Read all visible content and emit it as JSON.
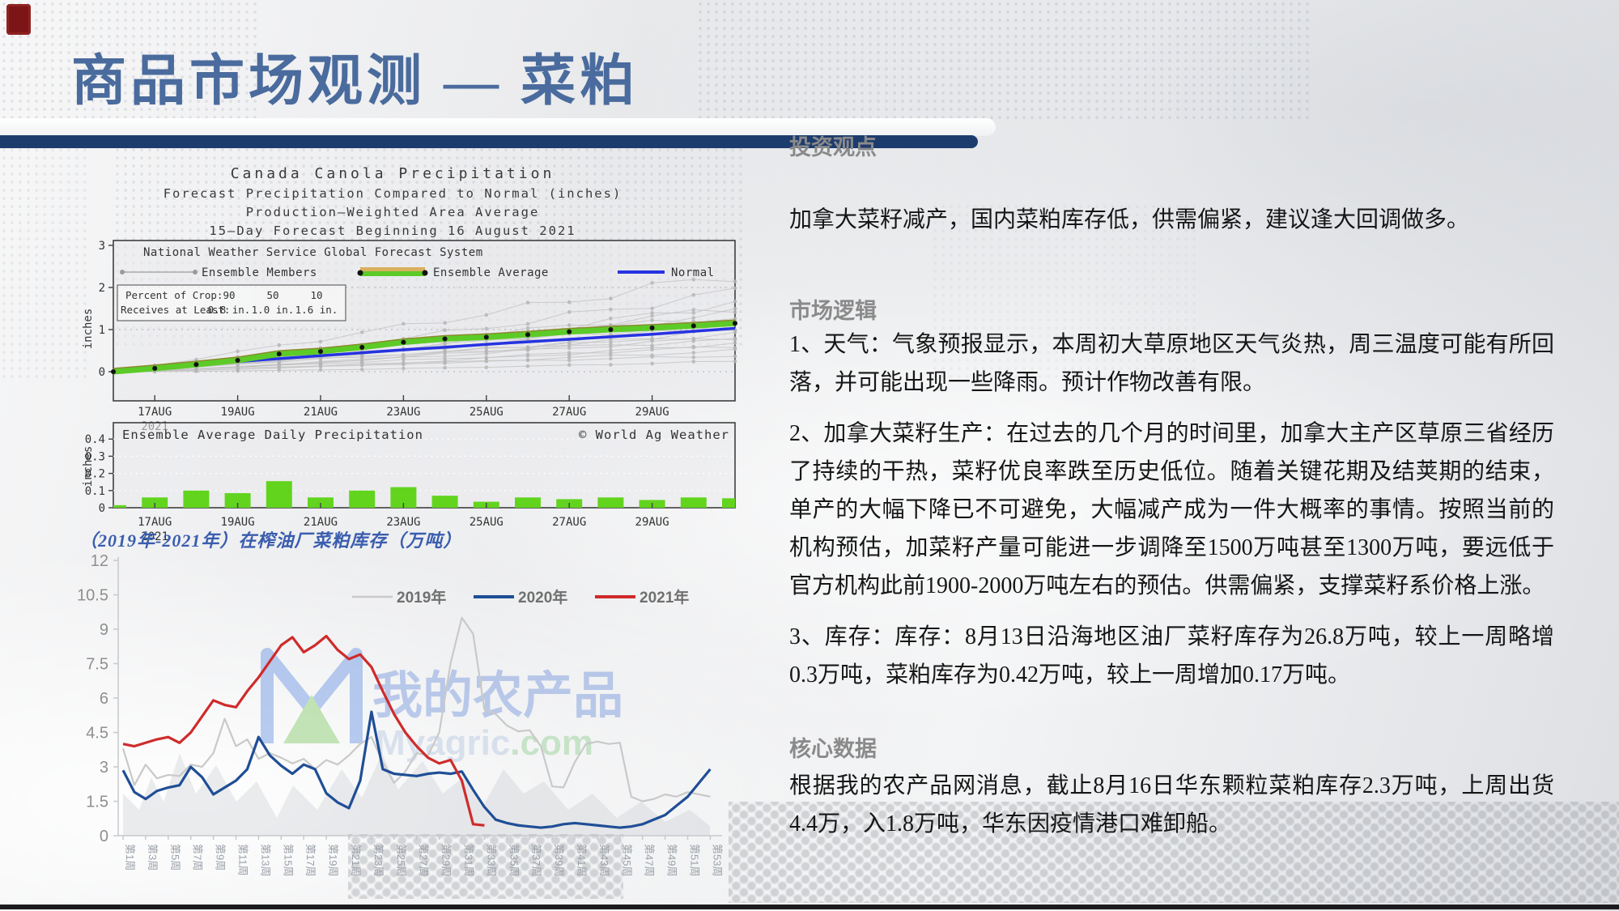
{
  "page": {
    "title": "商品市场观测 — 菜粕"
  },
  "sections": {
    "viewpoint": {
      "header": "投资观点",
      "body": "加拿大菜籽减产，国内菜粕库存低，供需偏紧，建议逢大回调做多。"
    },
    "logic": {
      "header": "市场逻辑",
      "items": [
        "1、天气：气象预报显示，本周初大草原地区天气炎热，周三温度可能有所回落，并可能出现一些降雨。预计作物改善有限。",
        "2、加拿大菜籽生产：在过去的几个月的时间里，加拿大主产区草原三省经历了持续的干热，菜籽优良率跌至历史低位。随着关键花期及结荚期的结束，单产的大幅下降已不可避免，大幅减产成为一件大概率的事情。按照当前的机构预估，加菜籽产量可能进一步调降至1500万吨甚至1300万吨，要远低于官方机构此前1900-2000万吨左右的预估。供需偏紧，支撑菜籽系价格上涨。",
        "3、库存：库存：8月13日沿海地区油厂菜籽库存为26.8万吨，较上一周略增0.3万吨，菜粕库存为0.42万吨，较上一周增加0.17万吨。"
      ]
    },
    "core": {
      "header": "核心数据",
      "body": "根据我的农产品网消息，截止8月16日华东颗粒菜粕库存2.3万吨，上周出货4.4万，入1.8万吨，华东因疫情港口难卸船。"
    }
  },
  "colors": {
    "accent_navy": "#1d3c6e",
    "title_blue": "#4a6b9d",
    "red_2021": "#cf2b2b",
    "blue_2020": "#1f4e96",
    "gray_2019": "#c9c9c9",
    "green_bar": "#62d41e",
    "normal_blue": "#2633e0"
  },
  "chart_data": [
    {
      "id": "canada-canola-precipitation-forecast",
      "type": "line",
      "title": "Canada Canola Precipitation",
      "subtitles": [
        "Forecast Precipitation Compared to Normal (inches)",
        "Production—Weighted Area Average",
        "15—Day Forecast Beginning 16 August 2021"
      ],
      "legend_title": "National Weather Service Global Forecast System",
      "ylabel": "inches",
      "ylim": [
        0,
        3
      ],
      "y_ticks": [
        0,
        1,
        2,
        3
      ],
      "x_tick_labels": [
        "17AUG",
        "19AUG",
        "21AUG",
        "23AUG",
        "25AUG",
        "27AUG",
        "29AUG"
      ],
      "x_year_label": "2021",
      "crop_table": {
        "row1_label": "Percent of Crop:",
        "row2_label": "Receives at Least:",
        "percents": [
          "90",
          "50",
          "10"
        ],
        "amounts": [
          "0.8 in.",
          "1.0 in.",
          "1.6 in."
        ]
      },
      "series": [
        {
          "name": "Ensemble Members",
          "color": "#bfbfbf",
          "finals": [
            0.25,
            0.38,
            0.5,
            0.6,
            0.68,
            0.75,
            0.82,
            0.9,
            0.98,
            1.05,
            1.12,
            1.2,
            1.3,
            1.4,
            1.5,
            1.65,
            1.9,
            2.3
          ],
          "powers": [
            1.6,
            0.9,
            1.3,
            1.05,
            1.5,
            0.8,
            1.2,
            1.0,
            1.35,
            0.95,
            1.45,
            1.1,
            0.85,
            1.25,
            1.05,
            1.4,
            1.15,
            1.0
          ]
        },
        {
          "name": "Ensemble Average",
          "color": "#5ccb27",
          "values": [
            0,
            0.08,
            0.17,
            0.27,
            0.42,
            0.48,
            0.58,
            0.7,
            0.78,
            0.82,
            0.88,
            0.95,
            1.0,
            1.04,
            1.09,
            1.15
          ]
        },
        {
          "name": "Normal",
          "color": "#2633e0",
          "values": [
            0.03,
            0.1,
            0.17,
            0.24,
            0.31,
            0.38,
            0.45,
            0.52,
            0.58,
            0.65,
            0.71,
            0.77,
            0.83,
            0.89,
            0.96,
            1.03
          ]
        }
      ]
    },
    {
      "id": "ensemble-average-daily-precipitation",
      "type": "bar",
      "title": "Ensemble Average Daily Precipitation",
      "credit": "© World Ag Weather",
      "ylabel": "inches",
      "ylim": [
        0,
        0.45
      ],
      "y_ticks": [
        0,
        0.1,
        0.2,
        0.3,
        0.4
      ],
      "x_tick_labels": [
        "17AUG",
        "19AUG",
        "21AUG",
        "23AUG",
        "25AUG",
        "27AUG",
        "29AUG"
      ],
      "x_year_label": "2021",
      "bar_color": "#62d41e",
      "values": [
        0.015,
        0.06,
        0.1,
        0.085,
        0.155,
        0.06,
        0.1,
        0.12,
        0.07,
        0.035,
        0.06,
        0.05,
        0.06,
        0.045,
        0.06,
        0.055
      ]
    },
    {
      "id": "rapeseed-meal-inventory-at-oil-mills",
      "type": "line",
      "title": "（2019年-2021年）在榨油厂菜粕库存（万吨）",
      "ylabel": "万吨",
      "ylim": [
        0,
        12
      ],
      "y_ticks": [
        0,
        1.5,
        3,
        4.5,
        6,
        7.5,
        9,
        10.5,
        12
      ],
      "x_range": [
        1,
        53
      ],
      "x_tick_labels": [
        "第1周",
        "第3周",
        "第5周",
        "第7周",
        "第9周",
        "第11周",
        "第13周",
        "第15周",
        "第17周",
        "第19周",
        "第21周",
        "第23周",
        "第25周",
        "第27周",
        "第29周",
        "第31周",
        "第33周",
        "第35周",
        "第37周",
        "第39周",
        "第41周",
        "第43周",
        "第45周",
        "第47周",
        "第49周",
        "第51周",
        "第53周"
      ],
      "watermark": {
        "cn": "我的农产品",
        "en_main": "Myagric",
        "en_suffix": ".com"
      },
      "series": [
        {
          "name": "2019年",
          "color": "#c9c9c9",
          "values": [
            3.8,
            2.2,
            3.1,
            2.5,
            2.65,
            2.6,
            3.1,
            3.0,
            3.6,
            5.1,
            3.9,
            4.2,
            3.35,
            3.6,
            3.4,
            3.15,
            3.35,
            2.9,
            3.3,
            3.1,
            3.5,
            4.0,
            4.3,
            3.2,
            2.3,
            2.8,
            3.6,
            3.5,
            4.5,
            7.5,
            9.5,
            8.8,
            5.5,
            5.3,
            4.8,
            4.55,
            4.6,
            3.9,
            2.15,
            2.1,
            3.2,
            4.0,
            4.1,
            4.0,
            4.05,
            1.7,
            1.5,
            1.6,
            1.8,
            1.7,
            1.9,
            1.8,
            1.7
          ]
        },
        {
          "name": "2020年",
          "color": "#1f4e96",
          "values": [
            2.85,
            1.9,
            1.6,
            1.95,
            2.1,
            2.2,
            3.0,
            2.55,
            1.8,
            2.1,
            2.4,
            2.9,
            4.3,
            3.5,
            3.05,
            2.7,
            3.1,
            2.9,
            1.85,
            1.45,
            1.2,
            2.4,
            5.4,
            2.9,
            2.7,
            2.65,
            2.6,
            2.7,
            2.75,
            2.7,
            2.8,
            2.0,
            1.25,
            0.7,
            0.55,
            0.45,
            0.4,
            0.35,
            0.4,
            0.5,
            0.55,
            0.5,
            0.45,
            0.4,
            0.35,
            0.4,
            0.5,
            0.7,
            0.9,
            1.3,
            1.7,
            2.3,
            2.9
          ]
        },
        {
          "name": "2021年",
          "color": "#cf2b2b",
          "values": [
            4.0,
            3.9,
            4.05,
            4.2,
            4.3,
            4.05,
            4.5,
            5.2,
            5.9,
            5.7,
            5.6,
            6.3,
            6.9,
            7.6,
            8.3,
            8.65,
            8.0,
            8.3,
            8.7,
            8.1,
            7.7,
            7.9,
            7.35,
            6.3,
            5.3,
            4.5,
            3.9,
            3.4,
            3.15,
            3.3,
            2.4,
            0.5,
            0.45
          ]
        }
      ]
    }
  ]
}
